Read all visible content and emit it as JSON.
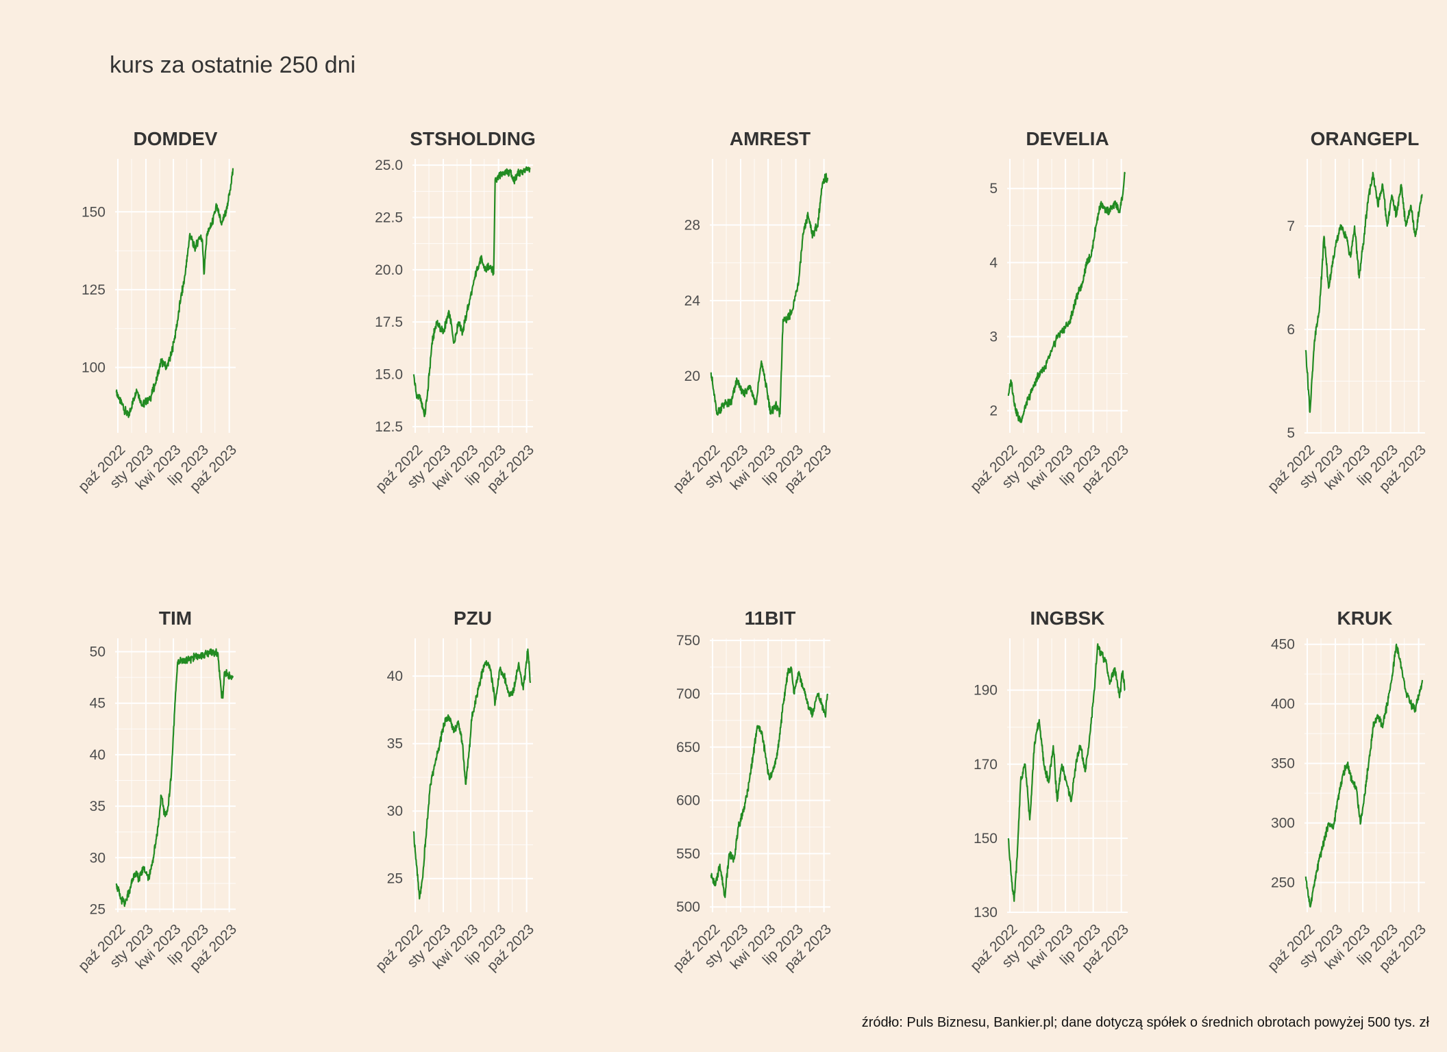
{
  "title": "kurs za ostatnie 250 dni",
  "caption": "źródło: Puls Biznesu, Bankier.pl; dane dotyczą spółek o średnich obrotach powyżej 500 tys. zł",
  "colors": {
    "background": "#FAEEE1",
    "line": "#228B22",
    "grid": "#FFFFFF"
  },
  "chart_data": [
    {
      "type": "line",
      "title": "DOMDEV",
      "x_ticks": [
        "paź 2022",
        "sty 2023",
        "kwi 2023",
        "lip 2023",
        "paź 2023"
      ],
      "y_ticks": [
        100,
        125,
        150
      ],
      "ylim": [
        79,
        167
      ],
      "series": [
        {
          "x": [
            "2022-09-26",
            "2022-10-15",
            "2022-11-05",
            "2022-12-01",
            "2022-12-20",
            "2023-01-15",
            "2023-02-01",
            "2023-02-20",
            "2023-03-10",
            "2023-03-25",
            "2023-04-10",
            "2023-04-25",
            "2023-05-10",
            "2023-05-25",
            "2023-06-10",
            "2023-06-25",
            "2023-07-05",
            "2023-07-10",
            "2023-07-20",
            "2023-08-05",
            "2023-08-20",
            "2023-09-05",
            "2023-09-20",
            "2023-10-05",
            "2023-10-13"
          ],
          "y": [
            92,
            88,
            84,
            93,
            88,
            90,
            95,
            102,
            100,
            104,
            112,
            122,
            130,
            143,
            138,
            142,
            141,
            130,
            143,
            146,
            152,
            146,
            150,
            157,
            164
          ]
        }
      ]
    },
    {
      "type": "line",
      "title": "STSHOLDING",
      "x_ticks": [
        "paź 2022",
        "sty 2023",
        "kwi 2023",
        "lip 2023",
        "paź 2023"
      ],
      "y_ticks": [
        12.5,
        15.0,
        17.5,
        20.0,
        22.5,
        25.0
      ],
      "ylim": [
        12.2,
        25.3
      ],
      "series": [
        {
          "x": [
            "2022-09-26",
            "2022-10-05",
            "2022-10-20",
            "2022-11-01",
            "2022-11-10",
            "2022-11-25",
            "2022-12-10",
            "2023-01-01",
            "2023-01-20",
            "2023-02-05",
            "2023-02-20",
            "2023-03-05",
            "2023-03-20",
            "2023-04-05",
            "2023-04-20",
            "2023-05-05",
            "2023-05-20",
            "2023-06-05",
            "2023-06-15",
            "2023-06-20",
            "2023-07-01",
            "2023-07-20",
            "2023-08-10",
            "2023-08-20",
            "2023-09-01",
            "2023-09-20",
            "2023-10-13"
          ],
          "y": [
            15.0,
            14.0,
            13.8,
            13.0,
            14.0,
            16.5,
            17.5,
            17.0,
            18.0,
            16.5,
            17.5,
            17.0,
            18.0,
            19.0,
            20.0,
            20.5,
            20.0,
            20.2,
            19.8,
            24.3,
            24.5,
            24.6,
            24.7,
            24.2,
            24.6,
            24.7,
            24.8
          ]
        }
      ]
    },
    {
      "type": "line",
      "title": "AMREST",
      "x_ticks": [
        "paź 2022",
        "sty 2023",
        "kwi 2023",
        "lip 2023",
        "paź 2023"
      ],
      "y_ticks": [
        20,
        24,
        28
      ],
      "ylim": [
        17,
        31.5
      ],
      "series": [
        {
          "x": [
            "2022-09-26",
            "2022-10-15",
            "2022-11-05",
            "2022-12-01",
            "2022-12-20",
            "2023-01-10",
            "2023-02-01",
            "2023-02-20",
            "2023-03-10",
            "2023-03-25",
            "2023-04-10",
            "2023-04-25",
            "2023-05-10",
            "2023-05-20",
            "2023-06-01",
            "2023-06-20",
            "2023-07-10",
            "2023-07-25",
            "2023-08-10",
            "2023-08-25",
            "2023-09-10",
            "2023-09-25",
            "2023-10-05",
            "2023-10-13"
          ],
          "y": [
            20.2,
            18.0,
            18.5,
            18.6,
            19.8,
            19.0,
            19.5,
            18.5,
            20.8,
            19.5,
            18.0,
            18.5,
            18.0,
            23.0,
            23.0,
            23.5,
            25.0,
            27.5,
            28.5,
            27.5,
            28.0,
            30.0,
            30.5,
            30.5
          ]
        }
      ]
    },
    {
      "type": "line",
      "title": "DEVELIA",
      "x_ticks": [
        "paź 2022",
        "sty 2023",
        "kwi 2023",
        "lip 2023",
        "paź 2023"
      ],
      "y_ticks": [
        2,
        3,
        4,
        5
      ],
      "ylim": [
        1.7,
        5.4
      ],
      "series": [
        {
          "x": [
            "2022-09-26",
            "2022-10-05",
            "2022-10-20",
            "2022-11-05",
            "2022-11-25",
            "2022-12-15",
            "2023-01-05",
            "2023-01-25",
            "2023-02-15",
            "2023-03-05",
            "2023-03-25",
            "2023-04-15",
            "2023-05-05",
            "2023-05-25",
            "2023-06-10",
            "2023-06-25",
            "2023-07-10",
            "2023-07-25",
            "2023-08-10",
            "2023-08-25",
            "2023-09-10",
            "2023-09-25",
            "2023-10-05",
            "2023-10-13"
          ],
          "y": [
            2.2,
            2.4,
            2.0,
            1.85,
            2.1,
            2.3,
            2.5,
            2.6,
            2.8,
            3.0,
            3.1,
            3.2,
            3.5,
            3.7,
            4.0,
            4.1,
            4.5,
            4.8,
            4.7,
            4.7,
            4.8,
            4.7,
            4.9,
            5.2
          ]
        }
      ]
    },
    {
      "type": "line",
      "title": "ORANGEPL",
      "x_ticks": [
        "paź 2022",
        "sty 2023",
        "kwi 2023",
        "lip 2023",
        "paź 2023"
      ],
      "y_ticks": [
        5,
        6,
        7
      ],
      "ylim": [
        5,
        7.65
      ],
      "series": [
        {
          "x": [
            "2022-09-26",
            "2022-10-10",
            "2022-10-25",
            "2022-11-10",
            "2022-11-25",
            "2022-12-10",
            "2023-01-01",
            "2023-01-20",
            "2023-02-05",
            "2023-02-20",
            "2023-03-05",
            "2023-03-20",
            "2023-04-05",
            "2023-04-20",
            "2023-05-05",
            "2023-05-20",
            "2023-06-05",
            "2023-06-20",
            "2023-07-05",
            "2023-07-20",
            "2023-08-05",
            "2023-08-20",
            "2023-09-05",
            "2023-09-20",
            "2023-10-05",
            "2023-10-13"
          ],
          "y": [
            5.8,
            5.2,
            5.9,
            6.2,
            6.9,
            6.4,
            6.8,
            7.0,
            6.9,
            6.7,
            7.0,
            6.5,
            6.9,
            7.3,
            7.5,
            7.2,
            7.4,
            7.0,
            7.3,
            7.1,
            7.4,
            7.0,
            7.2,
            6.9,
            7.2,
            7.3
          ]
        }
      ]
    },
    {
      "type": "line",
      "title": "TIM",
      "x_ticks": [
        "paź 2022",
        "sty 2023",
        "kwi 2023",
        "lip 2023",
        "paź 2023"
      ],
      "y_ticks": [
        25,
        30,
        35,
        40,
        45,
        50
      ],
      "ylim": [
        24.7,
        51.3
      ],
      "series": [
        {
          "x": [
            "2022-09-26",
            "2022-10-10",
            "2022-10-25",
            "2022-11-10",
            "2022-11-25",
            "2022-12-10",
            "2022-12-25",
            "2023-01-10",
            "2023-01-25",
            "2023-02-10",
            "2023-02-20",
            "2023-03-05",
            "2023-03-15",
            "2023-03-25",
            "2023-04-01",
            "2023-04-08",
            "2023-04-15",
            "2023-04-20",
            "2023-05-15",
            "2023-06-20",
            "2023-07-20",
            "2023-08-15",
            "2023-08-25",
            "2023-09-05",
            "2023-09-10",
            "2023-09-15",
            "2023-10-13"
          ],
          "y": [
            27.5,
            26.0,
            25.5,
            27.0,
            28.5,
            28.0,
            29.0,
            28.0,
            30.0,
            33.0,
            36.0,
            34.0,
            35.0,
            38.0,
            42.0,
            46.0,
            49.0,
            49.0,
            49.2,
            49.5,
            49.8,
            50.0,
            49.8,
            46.0,
            45.5,
            48.0,
            47.5
          ]
        }
      ]
    },
    {
      "type": "line",
      "title": "PZU",
      "x_ticks": [
        "paź 2022",
        "sty 2023",
        "kwi 2023",
        "lip 2023",
        "paź 2023"
      ],
      "y_ticks": [
        25,
        30,
        35,
        40
      ],
      "ylim": [
        22.5,
        42.8
      ],
      "series": [
        {
          "x": [
            "2022-09-26",
            "2022-10-05",
            "2022-10-15",
            "2022-10-25",
            "2022-11-05",
            "2022-11-20",
            "2022-12-05",
            "2022-12-20",
            "2023-01-05",
            "2023-01-20",
            "2023-02-05",
            "2023-02-20",
            "2023-03-05",
            "2023-03-15",
            "2023-03-25",
            "2023-04-05",
            "2023-04-20",
            "2023-05-05",
            "2023-05-20",
            "2023-06-05",
            "2023-06-20",
            "2023-07-05",
            "2023-07-20",
            "2023-08-05",
            "2023-08-20",
            "2023-09-05",
            "2023-09-20",
            "2023-10-05",
            "2023-10-13"
          ],
          "y": [
            28.5,
            26.0,
            23.5,
            25.0,
            28.0,
            32.0,
            33.5,
            35.0,
            36.5,
            37.0,
            36.0,
            36.5,
            35.0,
            32.0,
            34.0,
            37.0,
            38.5,
            40.0,
            41.0,
            40.5,
            38.0,
            40.5,
            40.0,
            38.5,
            39.0,
            41.0,
            39.0,
            42.0,
            39.5
          ]
        }
      ]
    },
    {
      "type": "line",
      "title": "11BIT",
      "x_ticks": [
        "paź 2022",
        "sty 2023",
        "kwi 2023",
        "lip 2023",
        "paź 2023"
      ],
      "y_ticks": [
        500,
        550,
        600,
        650,
        700,
        750
      ],
      "ylim": [
        495,
        752
      ],
      "series": [
        {
          "x": [
            "2022-09-26",
            "2022-10-10",
            "2022-10-25",
            "2022-11-10",
            "2022-11-25",
            "2022-12-10",
            "2022-12-25",
            "2023-01-10",
            "2023-01-25",
            "2023-02-10",
            "2023-02-25",
            "2023-03-10",
            "2023-03-25",
            "2023-04-05",
            "2023-04-20",
            "2023-05-05",
            "2023-05-20",
            "2023-06-05",
            "2023-06-15",
            "2023-06-25",
            "2023-07-10",
            "2023-07-25",
            "2023-08-10",
            "2023-08-25",
            "2023-09-10",
            "2023-09-25",
            "2023-10-05",
            "2023-10-13"
          ],
          "y": [
            530,
            520,
            540,
            510,
            550,
            545,
            575,
            590,
            610,
            640,
            670,
            665,
            640,
            620,
            630,
            650,
            690,
            720,
            725,
            700,
            720,
            705,
            690,
            680,
            700,
            690,
            680,
            700
          ]
        }
      ]
    },
    {
      "type": "line",
      "title": "INGBSK",
      "x_ticks": [
        "paź 2022",
        "sty 2023",
        "kwi 2023",
        "lip 2023",
        "paź 2023"
      ],
      "y_ticks": [
        130,
        150,
        170,
        190
      ],
      "ylim": [
        130,
        204
      ],
      "series": [
        {
          "x": [
            "2022-09-26",
            "2022-10-05",
            "2022-10-15",
            "2022-10-25",
            "2022-11-05",
            "2022-11-20",
            "2022-12-05",
            "2022-12-20",
            "2023-01-05",
            "2023-01-20",
            "2023-02-05",
            "2023-02-20",
            "2023-03-05",
            "2023-03-20",
            "2023-04-05",
            "2023-04-20",
            "2023-05-05",
            "2023-05-20",
            "2023-06-05",
            "2023-06-20",
            "2023-07-05",
            "2023-07-15",
            "2023-07-25",
            "2023-08-10",
            "2023-08-25",
            "2023-09-10",
            "2023-09-25",
            "2023-10-05",
            "2023-10-13"
          ],
          "y": [
            150,
            140,
            133,
            145,
            165,
            170,
            155,
            175,
            182,
            170,
            165,
            175,
            160,
            170,
            165,
            160,
            170,
            175,
            168,
            178,
            190,
            202,
            200,
            198,
            192,
            196,
            188,
            195,
            190
          ]
        }
      ]
    },
    {
      "type": "line",
      "title": "KRUK",
      "x_ticks": [
        "paź 2022",
        "sty 2023",
        "kwi 2023",
        "lip 2023",
        "paź 2023"
      ],
      "y_ticks": [
        250,
        300,
        350,
        400,
        450
      ],
      "ylim": [
        225,
        455
      ],
      "series": [
        {
          "x": [
            "2022-09-26",
            "2022-10-10",
            "2022-10-25",
            "2022-11-10",
            "2022-11-25",
            "2022-12-10",
            "2022-12-25",
            "2023-01-10",
            "2023-01-25",
            "2023-02-10",
            "2023-02-25",
            "2023-03-10",
            "2023-03-25",
            "2023-04-05",
            "2023-04-20",
            "2023-05-05",
            "2023-05-20",
            "2023-06-05",
            "2023-06-20",
            "2023-07-05",
            "2023-07-20",
            "2023-08-05",
            "2023-08-20",
            "2023-09-05",
            "2023-09-20",
            "2023-10-05",
            "2023-10-13"
          ],
          "y": [
            255,
            230,
            250,
            270,
            285,
            300,
            295,
            320,
            340,
            350,
            335,
            330,
            300,
            320,
            350,
            380,
            390,
            380,
            400,
            420,
            450,
            430,
            410,
            400,
            395,
            410,
            420
          ]
        }
      ]
    }
  ]
}
